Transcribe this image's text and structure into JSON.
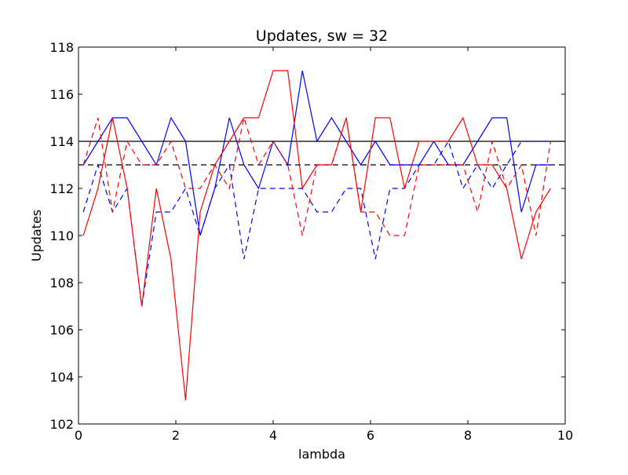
{
  "chart_data": {
    "type": "line",
    "title": "Updates, sw = 32",
    "xlabel": "lambda",
    "ylabel": "Updates",
    "xlim": [
      0,
      10
    ],
    "ylim": [
      102,
      118
    ],
    "xticks": [
      0,
      2,
      4,
      6,
      8,
      10
    ],
    "yticks": [
      102,
      104,
      106,
      108,
      110,
      112,
      114,
      116,
      118
    ],
    "xtick_labels": [
      "0",
      "2",
      "4",
      "6",
      "8",
      "10"
    ],
    "ytick_labels": [
      "102",
      "104",
      "106",
      "108",
      "110",
      "112",
      "114",
      "116",
      "118"
    ],
    "grid": false,
    "legend": "none",
    "x": [
      0.1,
      0.4,
      0.7,
      1.0,
      1.3,
      1.6,
      1.9,
      2.2,
      2.5,
      2.8,
      3.1,
      3.4,
      3.7,
      4.0,
      4.3,
      4.6,
      4.9,
      5.2,
      5.5,
      5.8,
      6.1,
      6.4,
      6.7,
      7.0,
      7.3,
      7.6,
      7.9,
      8.2,
      8.5,
      8.8,
      9.1,
      9.4,
      9.7
    ],
    "series": [
      {
        "color": "#0000ff",
        "style": "solid",
        "values": [
          113,
          114,
          115,
          115,
          114,
          113,
          115,
          114,
          110,
          112,
          115,
          113,
          112,
          114,
          113,
          117,
          114,
          115,
          114,
          113,
          114,
          113,
          113,
          113,
          114,
          113,
          113,
          114,
          115,
          115,
          111,
          113,
          113
        ]
      },
      {
        "color": "#0000ff",
        "style": "dashed",
        "values": [
          111,
          113,
          111,
          112,
          107,
          111,
          111,
          112,
          110,
          112,
          113,
          109,
          112,
          112,
          112,
          112,
          111,
          111,
          112,
          112,
          109,
          112,
          112,
          113,
          113,
          114,
          112,
          113,
          112,
          113,
          114,
          114,
          114
        ]
      },
      {
        "color": "#ff0000",
        "style": "solid",
        "values": [
          110,
          112,
          115,
          112,
          107,
          112,
          109,
          103,
          111,
          113,
          114,
          115,
          115,
          117,
          117,
          112,
          113,
          113,
          115,
          111,
          115,
          115,
          112,
          114,
          114,
          114,
          115,
          113,
          113,
          112,
          109,
          111,
          112
        ]
      },
      {
        "color": "#ff0000",
        "style": "dashed",
        "values": [
          113,
          115,
          111,
          114,
          113,
          113,
          114,
          112,
          112,
          113,
          112,
          115,
          113,
          114,
          113,
          110,
          113,
          113,
          115,
          111,
          111,
          110,
          110,
          113,
          113,
          113,
          113,
          111,
          114,
          112,
          113,
          110,
          114
        ]
      }
    ],
    "hlines": [
      {
        "y": 114,
        "color": "#000000",
        "style": "solid"
      },
      {
        "y": 113,
        "color": "#000000",
        "style": "dashed"
      }
    ]
  }
}
